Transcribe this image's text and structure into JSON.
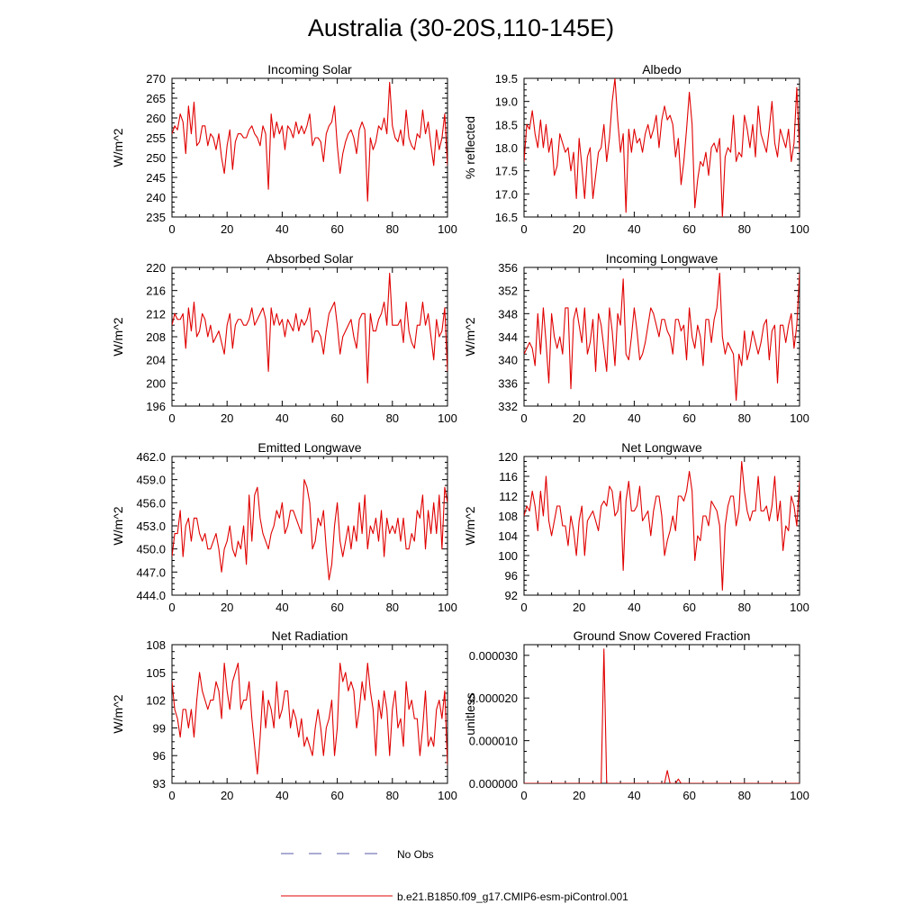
{
  "title": "Australia (30-20S,110-145E)",
  "legend": [
    {
      "label": "No Obs",
      "color": "#5a5aa8",
      "style": "dashed"
    },
    {
      "label": "b.e21.B1850.f09_g17.CMIP6-esm-piControl.001",
      "color": "#e00000",
      "style": "solid"
    }
  ],
  "chart_data": [
    {
      "type": "line",
      "title": "Incoming Solar",
      "ylabel": "W/m^2",
      "xlim": [
        0,
        100
      ],
      "ylim": [
        235,
        270
      ],
      "xticks": [
        "0",
        "20",
        "40",
        "60",
        "80",
        "100"
      ],
      "yticks": [
        "235",
        "240",
        "245",
        "250",
        "255",
        "260",
        "265",
        "270"
      ],
      "series": [
        {
          "name": "b.e21.B1850.f09_g17.CMIP6-esm-piControl.001",
          "color": "#e00000",
          "values": [
            256,
            258,
            257,
            261,
            259,
            251,
            263,
            256,
            264,
            253,
            254,
            258,
            258,
            253,
            256,
            255,
            252,
            256,
            250,
            246,
            253,
            257,
            247,
            254,
            256,
            256,
            255,
            255,
            257,
            258,
            256,
            255,
            253,
            258,
            256,
            242,
            261,
            255,
            259,
            256,
            258,
            252,
            258,
            257,
            255,
            259,
            256,
            258,
            256,
            258,
            261,
            253,
            255,
            255,
            254,
            249,
            256,
            258,
            259,
            263,
            253,
            246,
            251,
            254,
            256,
            257,
            255,
            251,
            257,
            259,
            257,
            239,
            255,
            252,
            254,
            258,
            257,
            260,
            256,
            269,
            258,
            255,
            254,
            257,
            253,
            262,
            255,
            253,
            252,
            256,
            255,
            262,
            256,
            259,
            253,
            248,
            257,
            252,
            255,
            261,
            248
          ]
        }
      ]
    },
    {
      "type": "line",
      "title": "Albedo",
      "ylabel": "% reflected",
      "xlim": [
        0,
        100
      ],
      "ylim": [
        16.5,
        19.5
      ],
      "xticks": [
        "0",
        "20",
        "40",
        "60",
        "80",
        "100"
      ],
      "yticks": [
        "16.5",
        "17.0",
        "17.5",
        "18.0",
        "18.5",
        "19.0",
        "19.5"
      ],
      "series": [
        {
          "name": "b.e21.B1850.f09_g17.CMIP6-esm-piControl.001",
          "color": "#e00000",
          "values": [
            17.7,
            18.5,
            18.4,
            18.8,
            18.3,
            18.0,
            18.6,
            18.0,
            18.5,
            17.9,
            18.2,
            17.4,
            17.6,
            18.3,
            18.1,
            17.9,
            18.0,
            17.5,
            17.9,
            16.9,
            18.2,
            17.6,
            16.9,
            17.8,
            18.0,
            16.9,
            17.4,
            17.9,
            18.0,
            18.5,
            17.7,
            18.2,
            19.0,
            19.5,
            18.6,
            17.9,
            18.3,
            16.6,
            18.4,
            17.9,
            18.4,
            18.1,
            18.2,
            17.9,
            18.3,
            18.5,
            18.2,
            18.4,
            18.7,
            18.0,
            18.6,
            18.9,
            18.6,
            18.7,
            18.5,
            17.8,
            18.2,
            17.2,
            17.7,
            18.4,
            19.2,
            18.5,
            16.7,
            17.3,
            17.7,
            17.6,
            17.9,
            17.4,
            18.0,
            18.1,
            17.9,
            18.2,
            16.5,
            17.8,
            18.0,
            17.9,
            18.7,
            17.7,
            17.9,
            17.8,
            18.7,
            18.4,
            18.0,
            18.5,
            17.8,
            18.9,
            18.3,
            18.1,
            17.9,
            18.4,
            19.0,
            18.1,
            17.8,
            18.4,
            18.2,
            18.0,
            18.4,
            17.7,
            18.1,
            19.3,
            17.9
          ]
        }
      ]
    },
    {
      "type": "line",
      "title": "Absorbed Solar",
      "ylabel": "W/m^2",
      "xlim": [
        0,
        100
      ],
      "ylim": [
        196,
        220
      ],
      "xticks": [
        "0",
        "20",
        "40",
        "60",
        "80",
        "100"
      ],
      "yticks": [
        "196",
        "200",
        "204",
        "208",
        "212",
        "216",
        "220"
      ],
      "series": [
        {
          "name": "b.e21.B1850.f09_g17.CMIP6-esm-piControl.001",
          "color": "#e00000",
          "values": [
            210,
            212,
            211,
            211,
            212,
            206,
            213,
            209,
            214,
            208,
            209,
            212,
            211,
            208,
            210,
            207,
            208,
            209,
            207,
            205,
            210,
            212,
            206,
            210,
            211,
            211,
            210,
            210,
            211,
            213,
            210,
            211,
            212,
            213,
            211,
            202,
            213,
            210,
            212,
            210,
            211,
            208,
            211,
            210,
            209,
            212,
            209,
            211,
            210,
            211,
            213,
            207,
            209,
            209,
            208,
            205,
            209,
            212,
            213,
            214,
            210,
            205,
            208,
            209,
            210,
            211,
            208,
            206,
            211,
            212,
            212,
            200,
            212,
            209,
            209,
            211,
            212,
            214,
            210,
            219,
            210,
            210,
            210,
            211,
            207,
            214,
            209,
            207,
            206,
            210,
            210,
            214,
            210,
            212,
            208,
            204,
            211,
            208,
            209,
            213,
            202
          ]
        }
      ]
    },
    {
      "type": "line",
      "title": "Incoming Longwave",
      "ylabel": "W/m^2",
      "xlim": [
        0,
        100
      ],
      "ylim": [
        332,
        356
      ],
      "xticks": [
        "0",
        "20",
        "40",
        "60",
        "80",
        "100"
      ],
      "yticks": [
        "332",
        "336",
        "340",
        "344",
        "348",
        "352",
        "356"
      ],
      "series": [
        {
          "name": "b.e21.B1850.f09_g17.CMIP6-esm-piControl.001",
          "color": "#e00000",
          "values": [
            341,
            342,
            343,
            342,
            339,
            348,
            341,
            349,
            343,
            336,
            348,
            344,
            342,
            344,
            341,
            349,
            349,
            335,
            347,
            349,
            346,
            343,
            349,
            341,
            343,
            347,
            338,
            348,
            346,
            342,
            338,
            349,
            345,
            339,
            348,
            346,
            354,
            341,
            340,
            344,
            349,
            345,
            340,
            341,
            343,
            346,
            349,
            348,
            346,
            344,
            347,
            347,
            345,
            344,
            341,
            347,
            347,
            345,
            346,
            340,
            349,
            344,
            342,
            346,
            344,
            339,
            347,
            347,
            343,
            347,
            349,
            355,
            344,
            341,
            343,
            342,
            341,
            333,
            341,
            339,
            345,
            340,
            342,
            345,
            343,
            341,
            343,
            346,
            347,
            340,
            345,
            346,
            336,
            346,
            346,
            343,
            346,
            348,
            342,
            346,
            355
          ]
        }
      ]
    },
    {
      "type": "line",
      "title": "Emitted Longwave",
      "ylabel": "W/m^2",
      "xlim": [
        0,
        100
      ],
      "ylim": [
        444.0,
        462.0
      ],
      "xticks": [
        "0",
        "20",
        "40",
        "60",
        "80",
        "100"
      ],
      "yticks": [
        "444.0",
        "447.0",
        "450.0",
        "453.0",
        "456.0",
        "459.0",
        "462.0"
      ],
      "series": [
        {
          "name": "b.e21.B1850.f09_g17.CMIP6-esm-piControl.001",
          "color": "#e00000",
          "values": [
            449,
            452,
            452,
            455,
            449,
            453,
            454,
            451,
            454,
            454,
            452,
            451,
            452,
            450,
            450,
            451,
            452,
            450,
            447,
            450,
            451,
            453,
            450,
            449,
            451,
            450,
            453,
            448,
            457,
            451,
            457,
            458,
            454,
            452,
            451,
            450,
            452,
            453,
            455,
            454,
            456,
            452,
            453,
            455,
            455,
            454,
            453,
            452,
            459,
            458,
            456,
            450,
            451,
            454,
            453,
            455,
            450,
            446,
            448,
            453,
            456,
            451,
            449,
            451,
            453,
            450,
            453,
            451,
            456,
            452,
            457,
            450,
            453,
            452,
            454,
            451,
            455,
            449,
            454,
            452,
            453,
            452,
            454,
            451,
            454,
            450,
            450,
            452,
            451,
            455,
            454,
            457,
            450,
            455,
            452,
            456,
            452,
            457,
            450,
            458,
            456
          ]
        }
      ]
    },
    {
      "type": "line",
      "title": "Net Longwave",
      "ylabel": "W/m^2",
      "xlim": [
        0,
        100
      ],
      "ylim": [
        92,
        120
      ],
      "xticks": [
        "0",
        "20",
        "40",
        "60",
        "80",
        "100"
      ],
      "yticks": [
        "92",
        "96",
        "100",
        "104",
        "108",
        "112",
        "116",
        "120"
      ],
      "series": [
        {
          "name": "b.e21.B1850.f09_g17.CMIP6-esm-piControl.001",
          "color": "#e00000",
          "values": [
            108,
            110,
            109,
            113,
            110,
            105,
            113,
            108,
            116,
            107,
            104,
            107,
            110,
            110,
            106,
            106,
            102,
            108,
            105,
            100,
            107,
            110,
            100,
            107,
            108,
            109,
            107,
            105,
            110,
            111,
            110,
            114,
            113,
            108,
            109,
            113,
            97,
            111,
            115,
            109,
            109,
            110,
            114,
            107,
            108,
            109,
            104,
            109,
            112,
            112,
            108,
            100,
            103,
            105,
            108,
            105,
            112,
            112,
            111,
            113,
            117,
            113,
            99,
            104,
            103,
            108,
            108,
            106,
            111,
            110,
            109,
            106,
            93,
            106,
            110,
            112,
            112,
            106,
            109,
            119,
            113,
            109,
            107,
            109,
            109,
            116,
            109,
            109,
            110,
            107,
            110,
            116,
            107,
            111,
            101,
            106,
            105,
            112,
            110,
            106,
            115
          ]
        }
      ]
    },
    {
      "type": "line",
      "title": "Net Radiation",
      "ylabel": "W/m^2",
      "xlim": [
        0,
        100
      ],
      "ylim": [
        93,
        108
      ],
      "xticks": [
        "0",
        "20",
        "40",
        "60",
        "80",
        "100"
      ],
      "yticks": [
        "93",
        "96",
        "99",
        "102",
        "105",
        "108"
      ],
      "series": [
        {
          "name": "b.e21.B1850.f09_g17.CMIP6-esm-piControl.001",
          "color": "#e00000",
          "values": [
            104,
            101,
            100,
            98,
            101,
            101,
            99,
            101,
            98,
            102,
            105,
            103,
            102,
            101,
            102,
            102,
            104,
            103,
            100,
            106,
            103,
            101,
            104,
            105,
            106,
            101,
            102,
            102,
            104,
            100,
            97,
            94,
            98,
            103,
            99,
            102,
            101,
            99,
            104,
            100,
            101,
            103,
            103,
            99,
            101,
            100,
            98,
            100,
            97,
            98,
            97,
            96,
            99,
            101,
            99,
            96,
            99,
            100,
            102,
            96,
            99,
            106,
            104,
            105,
            103,
            104,
            103,
            99,
            101,
            104,
            102,
            106,
            103,
            101,
            96,
            102,
            100,
            103,
            101,
            96,
            101,
            103,
            99,
            100,
            97,
            104,
            101,
            102,
            100,
            100,
            96,
            99,
            103,
            97,
            98,
            97,
            101,
            102,
            100,
            103,
            95
          ]
        }
      ]
    },
    {
      "type": "line",
      "title": "Ground Snow Covered Fraction",
      "ylabel": "unitless",
      "xlim": [
        0,
        100
      ],
      "ylim": [
        0.0,
        3.25e-05
      ],
      "xticks": [
        "0",
        "20",
        "40",
        "60",
        "80",
        "100"
      ],
      "yticks": [
        "0.000000",
        "0.000010",
        "0.000020",
        "0.000030"
      ],
      "series": [
        {
          "name": "b.e21.B1850.f09_g17.CMIP6-esm-piControl.001",
          "color": "#e00000",
          "values": [
            0,
            0,
            0,
            0,
            0,
            0,
            0,
            0,
            0,
            0,
            0,
            0,
            0,
            0,
            0,
            0,
            0,
            0,
            0,
            0,
            0,
            0,
            0,
            0,
            0,
            0,
            0,
            0,
            0,
            3.15e-05,
            0,
            0,
            0,
            0,
            0,
            0,
            0,
            0,
            0,
            0,
            0,
            0,
            0,
            0,
            0,
            0,
            0,
            0,
            0,
            0,
            0,
            0,
            3e-06,
            0,
            0,
            0,
            1e-06,
            0,
            0,
            0,
            0,
            0,
            0,
            0,
            0,
            0,
            0,
            0,
            0,
            0,
            0,
            0,
            0,
            0,
            0,
            0,
            0,
            0,
            0,
            0,
            0,
            0,
            0,
            0,
            0,
            0,
            0,
            0,
            0,
            0,
            0,
            0,
            0,
            0,
            0,
            0,
            0,
            0,
            0,
            0,
            0
          ]
        }
      ]
    }
  ]
}
